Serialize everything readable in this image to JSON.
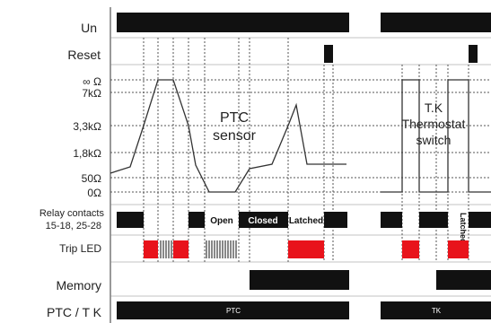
{
  "rows": {
    "un": "Un",
    "reset": "Reset",
    "relay_line1": "Relay contacts",
    "relay_line2": "15-18, 25-28",
    "trip_led": "Trip LED",
    "memory": "Memory",
    "ptc_tk": "PTC / T K"
  },
  "resistance_axis": {
    "ticks": [
      "∞ Ω",
      "7kΩ",
      "3,3kΩ",
      "1,8kΩ",
      "50Ω",
      "0Ω"
    ]
  },
  "annotations": {
    "ptc_sensor_line1": "PTC",
    "ptc_sensor_line2": "sensor",
    "tk_line1": "T.K",
    "tk_line2": "Thermostat",
    "tk_line3": "switch"
  },
  "relay_states": {
    "open": "Open",
    "closed": "Closed",
    "latched": "Latched",
    "latched_vertical": "Latched"
  },
  "mode_labels": {
    "ptc": "PTC",
    "tk": "TK"
  },
  "colors": {
    "signal_on": "#111111",
    "trip_led": "#e8131b",
    "grid_dotted": "#555555",
    "curve": "#333333"
  }
}
